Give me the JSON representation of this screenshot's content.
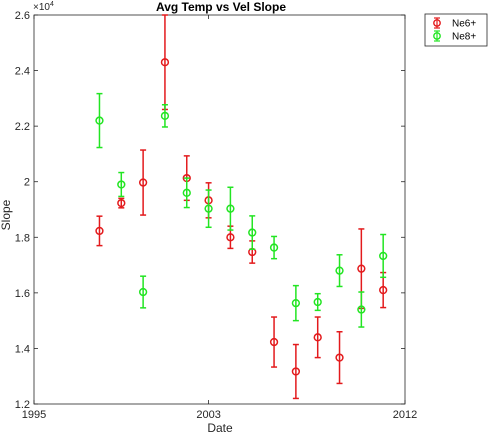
{
  "chart_data": {
    "type": "scatter",
    "title": "Avg Temp vs Vel Slope",
    "xlabel": "Date",
    "ylabel": "Slope",
    "y_exponent_base": "×10",
    "y_exponent_power": "4",
    "xlim": [
      1995,
      2012
    ],
    "ylim": [
      1.2,
      2.6
    ],
    "xticks": [
      1995,
      2003,
      2012
    ],
    "yticks": [
      1.2,
      1.4,
      1.6,
      1.8,
      2.0,
      2.2,
      2.4,
      2.6
    ],
    "ytick_labels": [
      "1.2",
      "1.4",
      "1.6",
      "1.8",
      "2",
      "2.2",
      "2.4",
      "2.6"
    ],
    "grid": false,
    "legend_position": "top-right",
    "series": [
      {
        "name": "Ne6+",
        "color": "#e31a1c",
        "marker": "circle",
        "points": [
          {
            "x": 1998.0,
            "y": 1.823,
            "err": 0.053
          },
          {
            "x": 1999.0,
            "y": 1.923,
            "err": 0.017
          },
          {
            "x": 2000.0,
            "y": 1.997,
            "err": 0.117
          },
          {
            "x": 2001.0,
            "y": 2.43,
            "err": 0.17
          },
          {
            "x": 2002.0,
            "y": 2.013,
            "err": 0.08
          },
          {
            "x": 2003.0,
            "y": 1.933,
            "err": 0.063
          },
          {
            "x": 2004.0,
            "y": 1.8,
            "err": 0.04
          },
          {
            "x": 2005.0,
            "y": 1.747,
            "err": 0.04
          },
          {
            "x": 2006.0,
            "y": 1.423,
            "err": 0.09
          },
          {
            "x": 2007.0,
            "y": 1.317,
            "err": 0.097
          },
          {
            "x": 2008.0,
            "y": 1.44,
            "err": 0.073
          },
          {
            "x": 2009.0,
            "y": 1.367,
            "err": 0.093
          },
          {
            "x": 2010.0,
            "y": 1.687,
            "err": 0.143
          },
          {
            "x": 2011.0,
            "y": 1.61,
            "err": 0.063
          }
        ]
      },
      {
        "name": "Ne8+",
        "color": "#22e522",
        "marker": "circle",
        "points": [
          {
            "x": 1998.0,
            "y": 2.22,
            "err": 0.097
          },
          {
            "x": 1999.0,
            "y": 1.99,
            "err": 0.043
          },
          {
            "x": 2000.0,
            "y": 1.603,
            "err": 0.057
          },
          {
            "x": 2001.0,
            "y": 2.237,
            "err": 0.04
          },
          {
            "x": 2002.0,
            "y": 1.96,
            "err": 0.053
          },
          {
            "x": 2003.0,
            "y": 1.903,
            "err": 0.067
          },
          {
            "x": 2004.0,
            "y": 1.903,
            "err": 0.077
          },
          {
            "x": 2005.0,
            "y": 1.817,
            "err": 0.06
          },
          {
            "x": 2006.0,
            "y": 1.763,
            "err": 0.04
          },
          {
            "x": 2007.0,
            "y": 1.563,
            "err": 0.063
          },
          {
            "x": 2008.0,
            "y": 1.567,
            "err": 0.03
          },
          {
            "x": 2009.0,
            "y": 1.68,
            "err": 0.057
          },
          {
            "x": 2010.0,
            "y": 1.54,
            "err": 0.063
          },
          {
            "x": 2011.0,
            "y": 1.733,
            "err": 0.077
          }
        ]
      }
    ]
  }
}
